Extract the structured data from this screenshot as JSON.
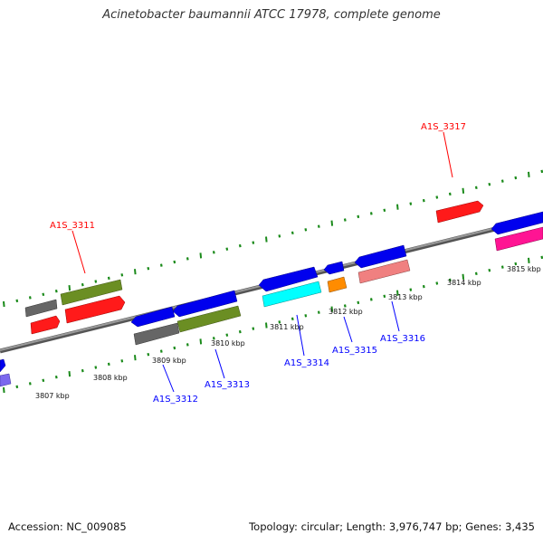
{
  "title": "Acinetobacter baumannii ATCC 17978, complete genome",
  "footer": {
    "accession": "Accession: NC_009085",
    "stats": "Topology: circular; Length: 3,976,747 bp; Genes: 3,435"
  },
  "ruler_labels": [
    {
      "text": "3807 kbp",
      "kbp": 3807
    },
    {
      "text": "3808 kbp",
      "kbp": 3808
    },
    {
      "text": "3809 kbp",
      "kbp": 3809
    },
    {
      "text": "3810 kbp",
      "kbp": 3810
    },
    {
      "text": "3811 kbp",
      "kbp": 3811
    },
    {
      "text": "3812 kbp",
      "kbp": 3812
    },
    {
      "text": "3813 kbp",
      "kbp": 3813
    },
    {
      "text": "3814 kbp",
      "kbp": 3814
    },
    {
      "text": "3815 kbp",
      "kbp": 3815
    }
  ],
  "gene_labels": [
    {
      "text": "A1S_3311",
      "strand": "forward",
      "color": "#ff0000"
    },
    {
      "text": "A1S_3317",
      "strand": "forward",
      "color": "#ff0000"
    },
    {
      "text": "A1S_3312",
      "strand": "reverse",
      "color": "#0000ff"
    },
    {
      "text": "A1S_3313",
      "strand": "reverse",
      "color": "#0000ff"
    },
    {
      "text": "A1S_3314",
      "strand": "reverse",
      "color": "#0000ff"
    },
    {
      "text": "A1S_3315",
      "strand": "reverse",
      "color": "#0000ff"
    },
    {
      "text": "A1S_3316",
      "strand": "reverse",
      "color": "#0000ff"
    }
  ],
  "colors": {
    "backbone": "#888888",
    "tick": "#1a8a1a",
    "forward_label": "#ff0000",
    "reverse_label": "#0000ff",
    "cds": "#0000ee",
    "rna": "#ff0000",
    "other": "#6b8e23",
    "gray": "#666666",
    "cyan": "#00ffff",
    "orange": "#ff8c00",
    "salmon": "#f08080",
    "magenta": "#ff1493",
    "purple": "#7b68ee"
  }
}
